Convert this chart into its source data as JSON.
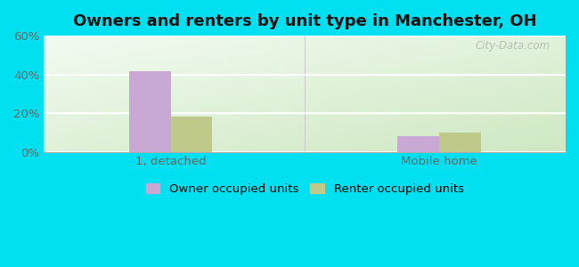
{
  "title": "Owners and renters by unit type in Manchester, OH",
  "categories": [
    "1, detached",
    "Mobile home"
  ],
  "owner_values": [
    41.5,
    8.0
  ],
  "renter_values": [
    18.0,
    10.0
  ],
  "owner_color": "#c9a8d4",
  "renter_color": "#bfc98a",
  "owner_label": "Owner occupied units",
  "renter_label": "Renter occupied units",
  "ylim": [
    0,
    60
  ],
  "yticks": [
    0,
    20,
    40,
    60
  ],
  "ytick_labels": [
    "0%",
    "20%",
    "40%",
    "60%"
  ],
  "background_outer": "#00e0f0",
  "watermark": "City-Data.com",
  "bar_width": 0.28,
  "title_fontsize": 13,
  "tick_fontsize": 9.5,
  "legend_fontsize": 9.5
}
